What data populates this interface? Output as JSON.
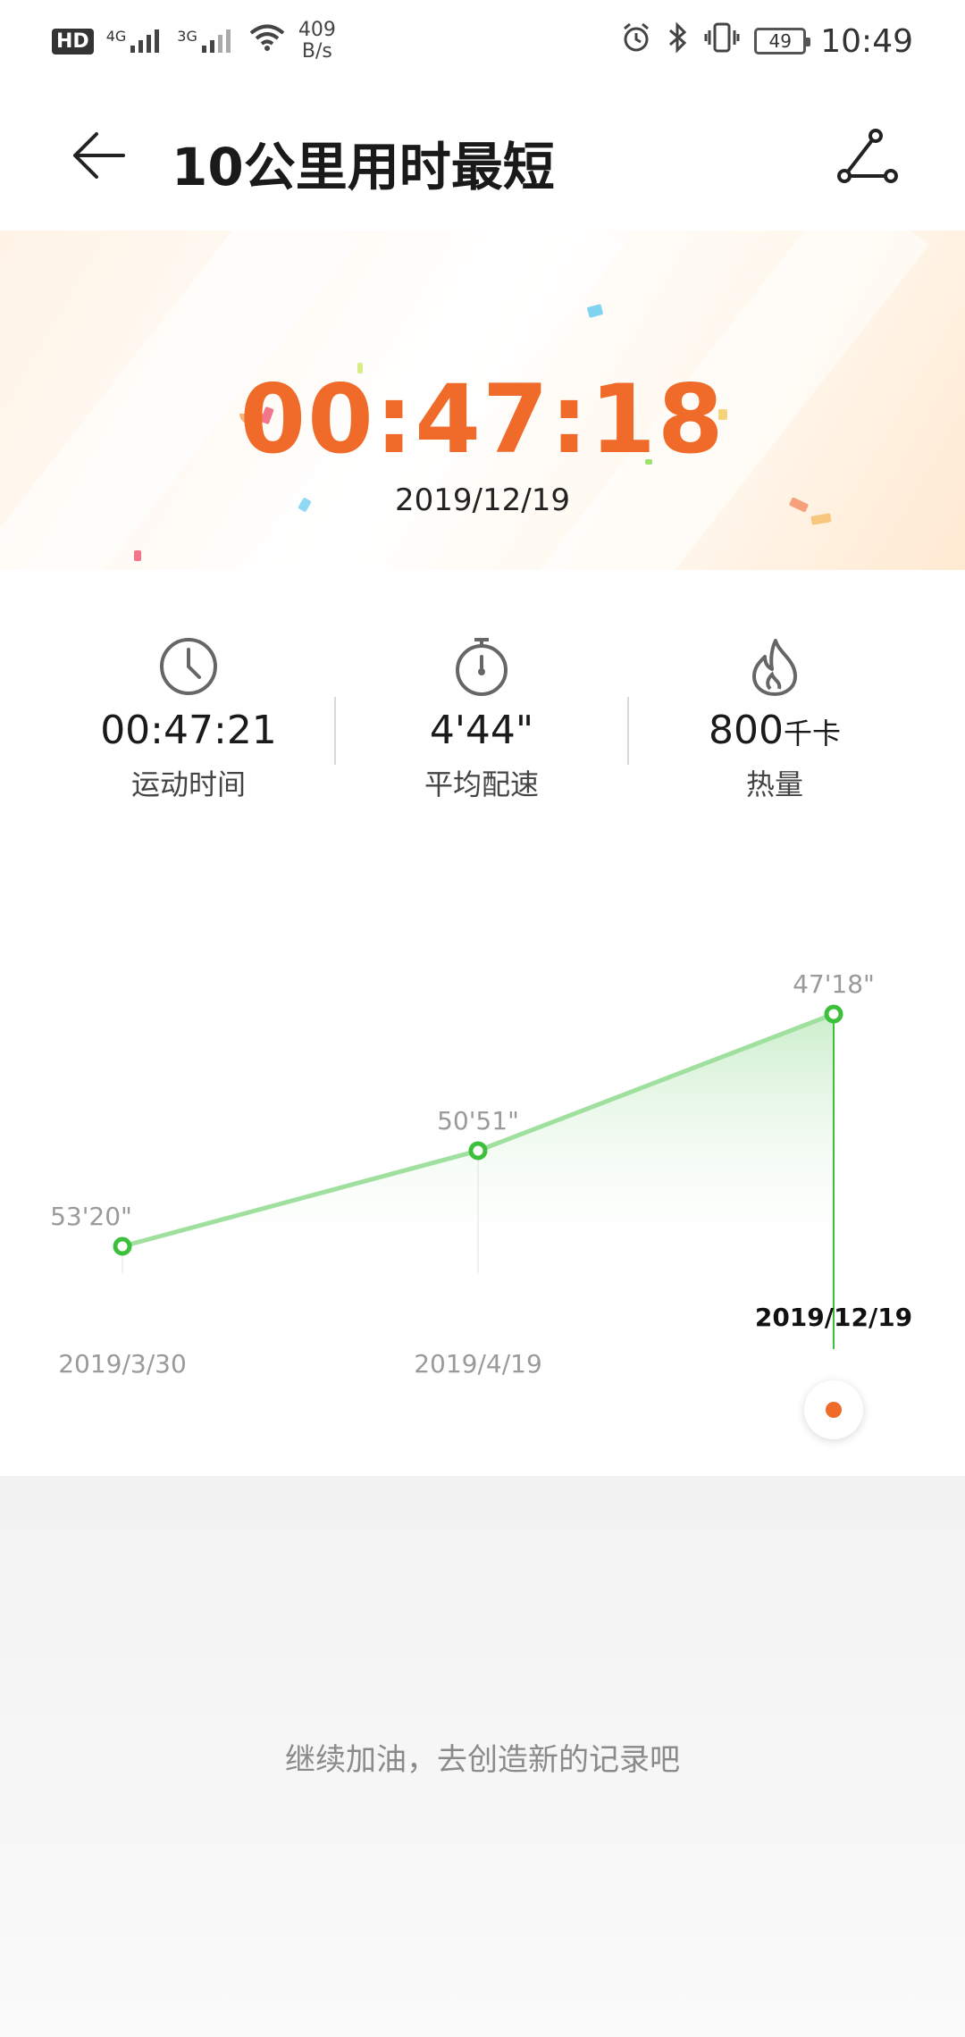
{
  "status_bar": {
    "hd": "HD",
    "net1": "4G",
    "net2": "3G",
    "speed_value": "409",
    "speed_unit": "B/s",
    "battery": "49",
    "time": "10:49"
  },
  "header": {
    "title": "10公里用时最短"
  },
  "record": {
    "time": "00:47:18",
    "date": "2019/12/19"
  },
  "stats": [
    {
      "icon": "clock-icon",
      "value": "00:47:21",
      "unit": "",
      "label": "运动时间"
    },
    {
      "icon": "stopwatch-icon",
      "value": "4'44\"",
      "unit": "",
      "label": "平均配速"
    },
    {
      "icon": "flame-icon",
      "value": "800",
      "unit": "千卡",
      "label": "热量"
    }
  ],
  "chart_data": {
    "type": "area",
    "x": [
      "2019/3/30",
      "2019/4/19",
      "2019/12/19"
    ],
    "series": [
      {
        "values": [
          3200,
          3051,
          2838
        ]
      }
    ],
    "data_labels": [
      "53'20\"",
      "50'51\"",
      "47'18\""
    ],
    "selected_index": 2,
    "colors": {
      "line": "#9fe09f",
      "point": "#3cc03c",
      "fill_top": "#c6ecc6"
    }
  },
  "footer": {
    "message": "继续加油，去创造新的记录吧"
  },
  "colors": {
    "accent": "#f06a2a",
    "chart_green": "#3cc03c"
  }
}
